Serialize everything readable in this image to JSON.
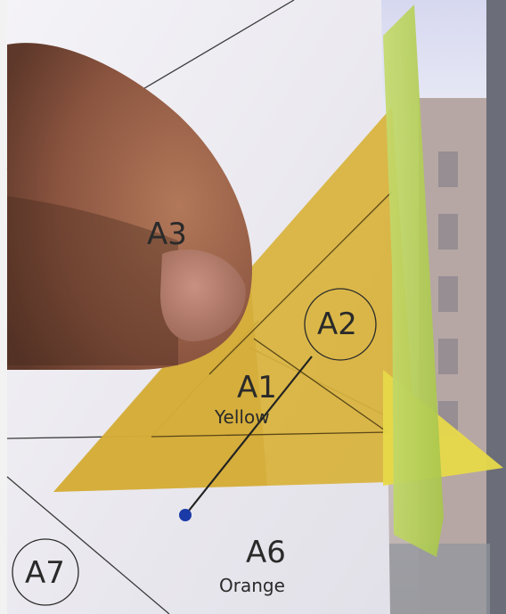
{
  "labels": {
    "a1": "A1",
    "a1_color": "Yellow",
    "a2": "A2",
    "a3": "A3",
    "a6": "A6",
    "a6_color": "Orange",
    "a7": "A7"
  },
  "colors": {
    "paper": "#e8e6ec",
    "yellow_fabric": "#d9b63e",
    "green_fabric": "#bcd35a",
    "bright_yellow": "#e6d94a",
    "window_sky": "#cdd2e8",
    "building": "#b9a9a6",
    "finger": "#a36a4f",
    "pin_head": "#1a3aa8"
  }
}
